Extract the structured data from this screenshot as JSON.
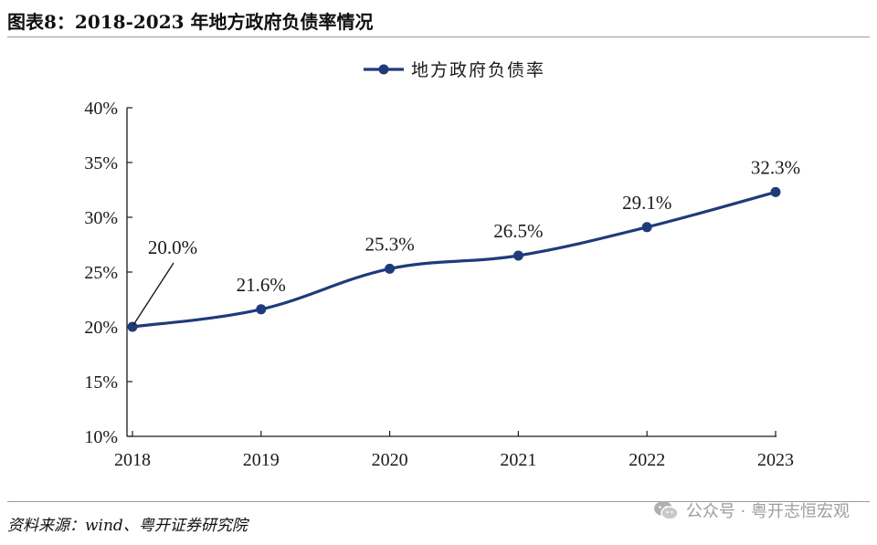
{
  "figure": {
    "title": "图表8：2018-2023 年地方政府负债率情况",
    "source": "资料来源：wind、粤开证券研究院",
    "watermark": "公众号 · 粤开志恒宏观",
    "watermark_icon": "wechat-icon"
  },
  "colors": {
    "series": "#1f3b7a",
    "axis": "#1a1a1a",
    "rule": "#9a9a9a",
    "watermark": "#9d9d9d"
  },
  "chart_data": {
    "type": "line",
    "title": "",
    "xlabel": "",
    "ylabel": "",
    "categories": [
      "2018",
      "2019",
      "2020",
      "2021",
      "2022",
      "2023"
    ],
    "series": [
      {
        "name": "地方政府负债率",
        "values": [
          20.0,
          21.6,
          25.3,
          26.5,
          29.1,
          32.3
        ],
        "data_labels": [
          "20.0%",
          "21.6%",
          "25.3%",
          "26.5%",
          "29.1%",
          "32.3%"
        ],
        "smooth": true,
        "markers": true
      }
    ],
    "ylim": [
      10,
      40
    ],
    "yticks": [
      10,
      15,
      20,
      25,
      30,
      35,
      40
    ],
    "ytick_labels": [
      "10%",
      "15%",
      "20%",
      "25%",
      "30%",
      "35%",
      "40%"
    ],
    "grid": false,
    "legend_position": "top-center",
    "annotation_leader_line_on": "2018"
  }
}
